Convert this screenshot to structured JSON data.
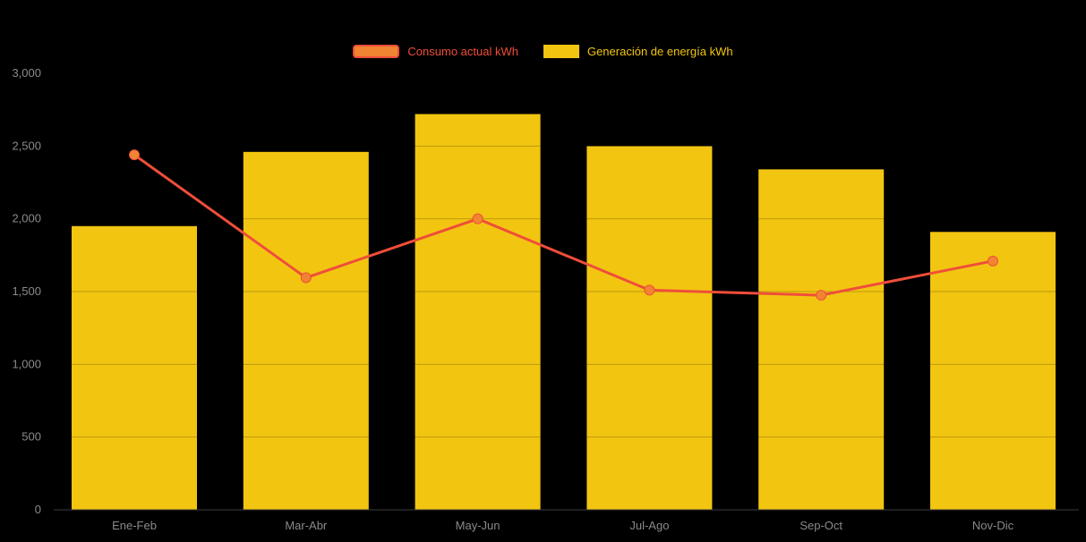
{
  "chart_data": {
    "type": "combo-bar-line",
    "categories": [
      "Ene-Feb",
      "Mar-Abr",
      "May-Jun",
      "Jul-Ago",
      "Sep-Oct",
      "Nov-Dic"
    ],
    "series": [
      {
        "name": "Consumo actual kWh",
        "type": "line",
        "color": "#ef4e3a",
        "marker_color": "#f18432",
        "values": [
          2440,
          1595,
          2000,
          1510,
          1475,
          1710
        ]
      },
      {
        "name": "Generación de energía kWh",
        "type": "bar",
        "color": "#f2c511",
        "values": [
          1950,
          2460,
          2720,
          2500,
          2340,
          1910
        ]
      }
    ],
    "ylim": [
      0,
      3000
    ],
    "ytick_step": 500,
    "ytick_labels": [
      "0",
      "500",
      "1,000",
      "1,500",
      "2,000",
      "2,500",
      "3,000"
    ],
    "legend_position": "top",
    "grid": "faint-horizontal",
    "background_color": "#000000",
    "axis_label_color": "#8a8a8a"
  }
}
